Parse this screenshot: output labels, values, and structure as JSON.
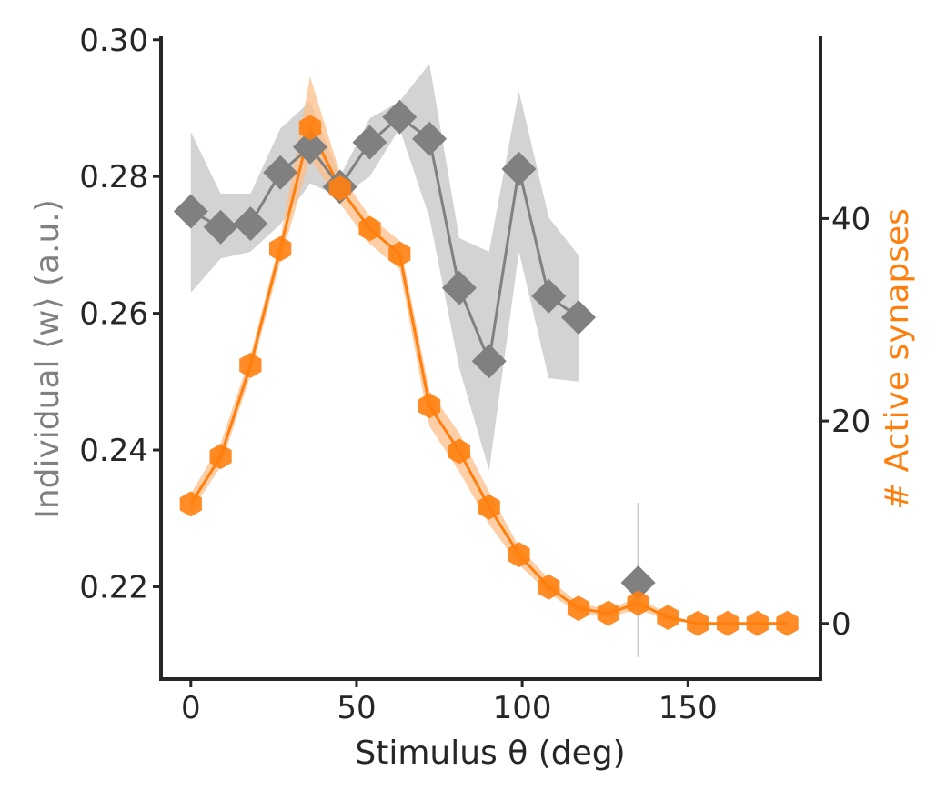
{
  "chart_data": {
    "type": "line",
    "xlabel": "Stimulus θ (deg)",
    "ylabel_left": "Individual ⟨w⟩ (a.u.)",
    "ylabel_right": "# Active synapses",
    "xlim": [
      -9,
      190
    ],
    "xticks": [
      0,
      50,
      100,
      150
    ],
    "ylim_left": [
      0.2065,
      0.3005
    ],
    "yticks_left": [
      "0.22",
      "0.24",
      "0.26",
      "0.28",
      "0.30"
    ],
    "ylim_right": [
      -5.5,
      58
    ],
    "yticks_right": [
      0,
      20,
      40
    ],
    "colors": {
      "gray": "#808080",
      "gray_band": "#c8c8c8",
      "orange": "#ff7f0e",
      "orange_band": "#fdbf8a",
      "axis": "#262626"
    },
    "series": [
      {
        "axis": "left",
        "marker": "diamond",
        "x": [
          0,
          9,
          18,
          27,
          36,
          45,
          54,
          63,
          72,
          81,
          90,
          99,
          108,
          117
        ],
        "y": [
          0.2749,
          0.2726,
          0.2731,
          0.2806,
          0.2843,
          0.2785,
          0.285,
          0.2887,
          0.2855,
          0.2637,
          0.253,
          0.2811,
          0.2625,
          0.2594
        ],
        "y_low": [
          0.263,
          0.268,
          0.269,
          0.273,
          0.279,
          0.277,
          0.28,
          0.287,
          0.274,
          0.252,
          0.237,
          0.269,
          0.2505,
          0.25
        ],
        "y_high": [
          0.2865,
          0.2775,
          0.2775,
          0.287,
          0.291,
          0.28,
          0.2885,
          0.291,
          0.2965,
          0.271,
          0.269,
          0.2925,
          0.274,
          0.2685
        ]
      },
      {
        "axis": "left",
        "marker": "diamond",
        "x": [
          135
        ],
        "y": [
          0.2206
        ],
        "y_low": [
          0.2097
        ],
        "y_high": [
          0.2323
        ]
      },
      {
        "axis": "right",
        "marker": "hexagon",
        "x": [
          0,
          9,
          18,
          27,
          36,
          45,
          54,
          63,
          72,
          81,
          90,
          99,
          108,
          117,
          126,
          135,
          144,
          153,
          162,
          171,
          180
        ],
        "y": [
          11.8,
          16.5,
          25.5,
          37.0,
          49.0,
          43.0,
          39.0,
          36.5,
          21.5,
          17.0,
          11.5,
          6.8,
          3.6,
          1.5,
          1.0,
          2.0,
          0.6,
          0.0,
          0.0,
          0.0,
          0.0
        ],
        "y_low": [
          11.0,
          15.5,
          24.5,
          35.8,
          46.0,
          41.5,
          37.5,
          35.0,
          19.5,
          15.0,
          9.8,
          5.8,
          3.0,
          1.0,
          0.6,
          1.4,
          0.3,
          0.0,
          0.0,
          0.0,
          0.0
        ],
        "y_high": [
          12.8,
          17.8,
          26.5,
          38.0,
          54.0,
          44.5,
          40.2,
          37.8,
          23.0,
          18.8,
          13.0,
          7.6,
          4.4,
          2.0,
          1.4,
          2.6,
          0.9,
          0.0,
          0.0,
          0.0,
          0.0
        ]
      }
    ]
  }
}
